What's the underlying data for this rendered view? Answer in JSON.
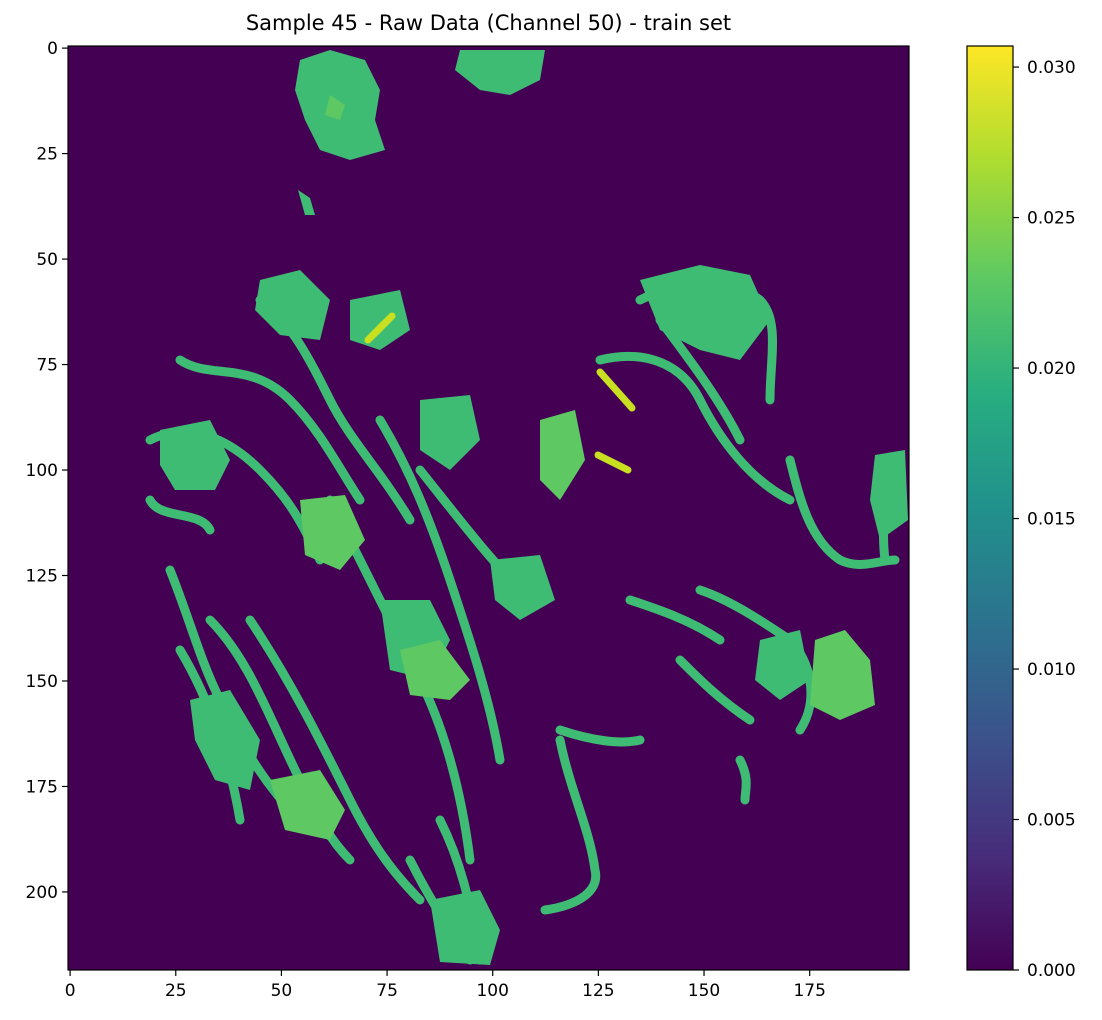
{
  "chart_data": {
    "type": "heatmap",
    "title": "Sample 45 - Raw Data (Channel 50) - train set",
    "xlabel": "",
    "ylabel": "",
    "colormap": "viridis",
    "shape": {
      "rows": 219,
      "cols": 199
    },
    "xlim": [
      0,
      199
    ],
    "ylim": [
      219,
      0
    ],
    "x_ticks": [
      0,
      25,
      50,
      75,
      100,
      125,
      150,
      175
    ],
    "y_ticks": [
      0,
      25,
      50,
      75,
      100,
      125,
      150,
      175,
      200
    ],
    "colorbar": {
      "range": [
        0.0,
        0.0307
      ],
      "ticks": [
        "0.000",
        "0.005",
        "0.010",
        "0.015",
        "0.020",
        "0.025",
        "0.030"
      ]
    },
    "value_summary": {
      "background": 0.0,
      "typical_foreground": 0.021,
      "max": 0.0307
    }
  }
}
